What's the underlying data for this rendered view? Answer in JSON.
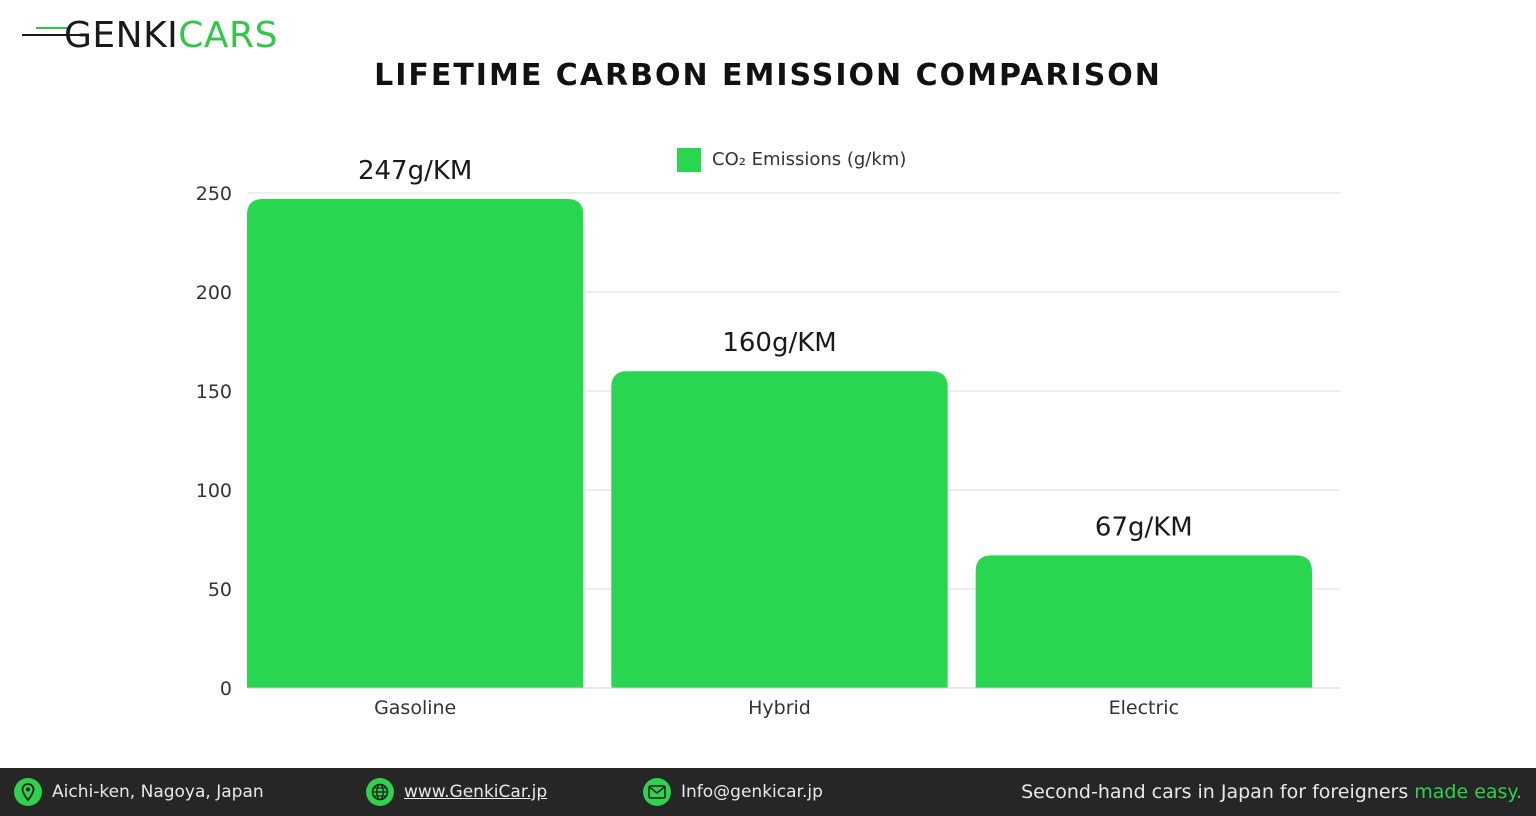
{
  "brand": {
    "part1": "GENKI",
    "part2": "CARS",
    "green": "#33c749"
  },
  "title": "LIFETIME CARBON EMISSION COMPARISON",
  "chart_data": {
    "type": "bar",
    "categories": [
      "Gasoline",
      "Hybrid",
      "Electric"
    ],
    "series": [
      {
        "name": "CO₂ Emissions (g/km)",
        "values": [
          247,
          160,
          67
        ]
      }
    ],
    "data_labels": [
      "247g/KM",
      "160g/KM",
      "67g/KM"
    ],
    "ylim": [
      0,
      250
    ],
    "yticks": [
      0,
      50,
      100,
      150,
      200,
      250
    ],
    "grid": true,
    "legend": "top-center",
    "bar_color": "#28d74f"
  },
  "footer": {
    "location": "Aichi-ken, Nagoya, Japan",
    "website": "www.GenkiCar.jp",
    "email": "Info@genkicar.jp",
    "tagline_main": "Second-hand cars in Japan for foreigners",
    "tagline_accent": "made easy."
  }
}
